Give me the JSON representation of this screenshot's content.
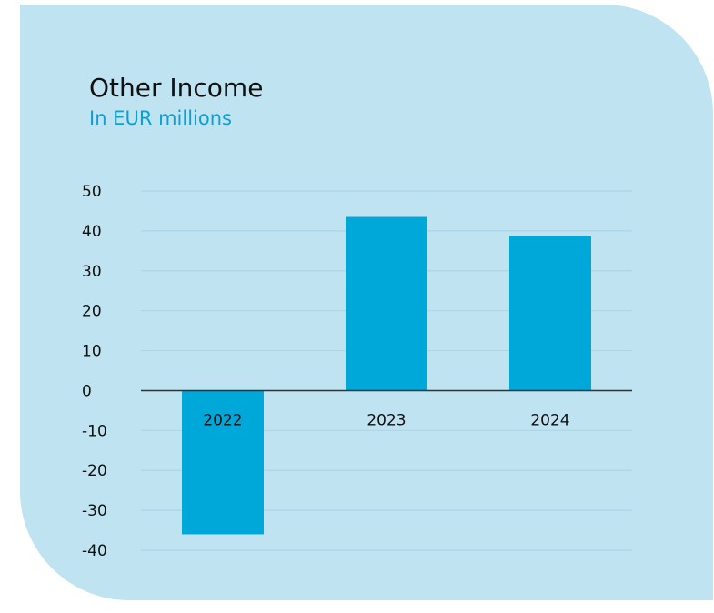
{
  "chart_data": {
    "type": "bar",
    "title": "Other Income",
    "subtitle": "In EUR millions",
    "categories": [
      "2022",
      "2023",
      "2024"
    ],
    "values": [
      -36,
      43.5,
      38.8
    ],
    "ylim": [
      -40,
      50
    ],
    "yticks": [
      50,
      40,
      30,
      20,
      10,
      0,
      -10,
      -20,
      -30,
      -40
    ],
    "grid": true,
    "xlabel": "",
    "ylabel": ""
  },
  "colors": {
    "card_background": "#c0e3f1",
    "bar": "#00a7d9",
    "gridline": "#a8d6ea",
    "zero_line": "#333333",
    "subtitle": "#0d9fd2"
  }
}
